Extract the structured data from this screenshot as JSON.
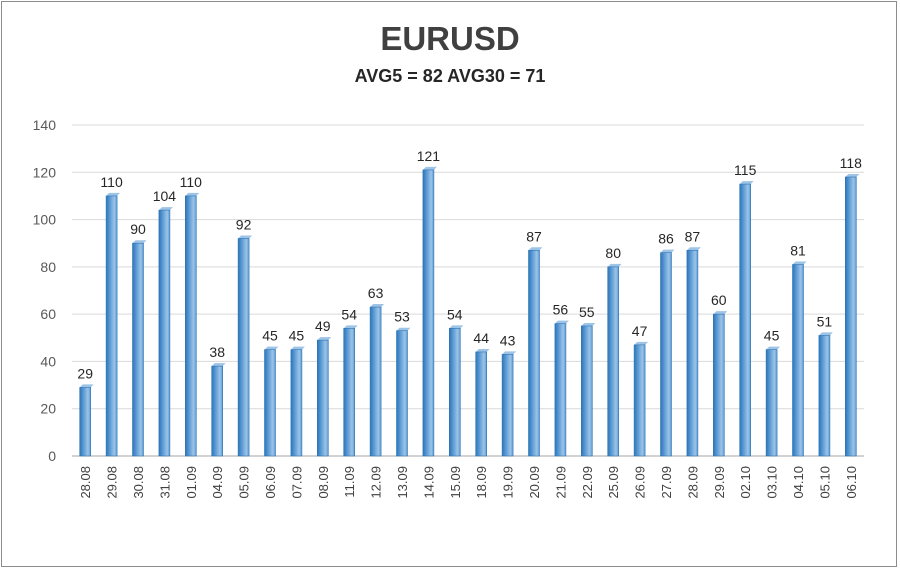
{
  "chart_data": {
    "type": "bar",
    "title": "EURUSD",
    "subtitle": "AVG5 = 82 AVG30 = 71",
    "categories": [
      "28.08",
      "29.08",
      "30.08",
      "31.08",
      "01.09",
      "04.09",
      "05.09",
      "06.09",
      "07.09",
      "08.09",
      "11.09",
      "12.09",
      "13.09",
      "14.09",
      "15.09",
      "18.09",
      "19.09",
      "20.09",
      "21.09",
      "22.09",
      "25.09",
      "26.09",
      "27.09",
      "28.09",
      "29.09",
      "02.10",
      "03.10",
      "04.10",
      "05.10",
      "06.10"
    ],
    "values": [
      29,
      110,
      90,
      104,
      110,
      38,
      92,
      45,
      45,
      49,
      54,
      63,
      53,
      121,
      54,
      44,
      43,
      87,
      56,
      55,
      80,
      47,
      86,
      87,
      60,
      115,
      45,
      81,
      51,
      118
    ],
    "ylim": [
      0,
      140
    ],
    "yticks": [
      0,
      20,
      40,
      60,
      80,
      100,
      120,
      140
    ],
    "grid": true,
    "data_labels": true,
    "colors": {
      "bar": "#5b9bd5",
      "bar_dark": "#2e75b6",
      "bar_light": "#9dc3e6",
      "grid": "#d9d9d9",
      "axis": "#a6a6a6"
    }
  }
}
